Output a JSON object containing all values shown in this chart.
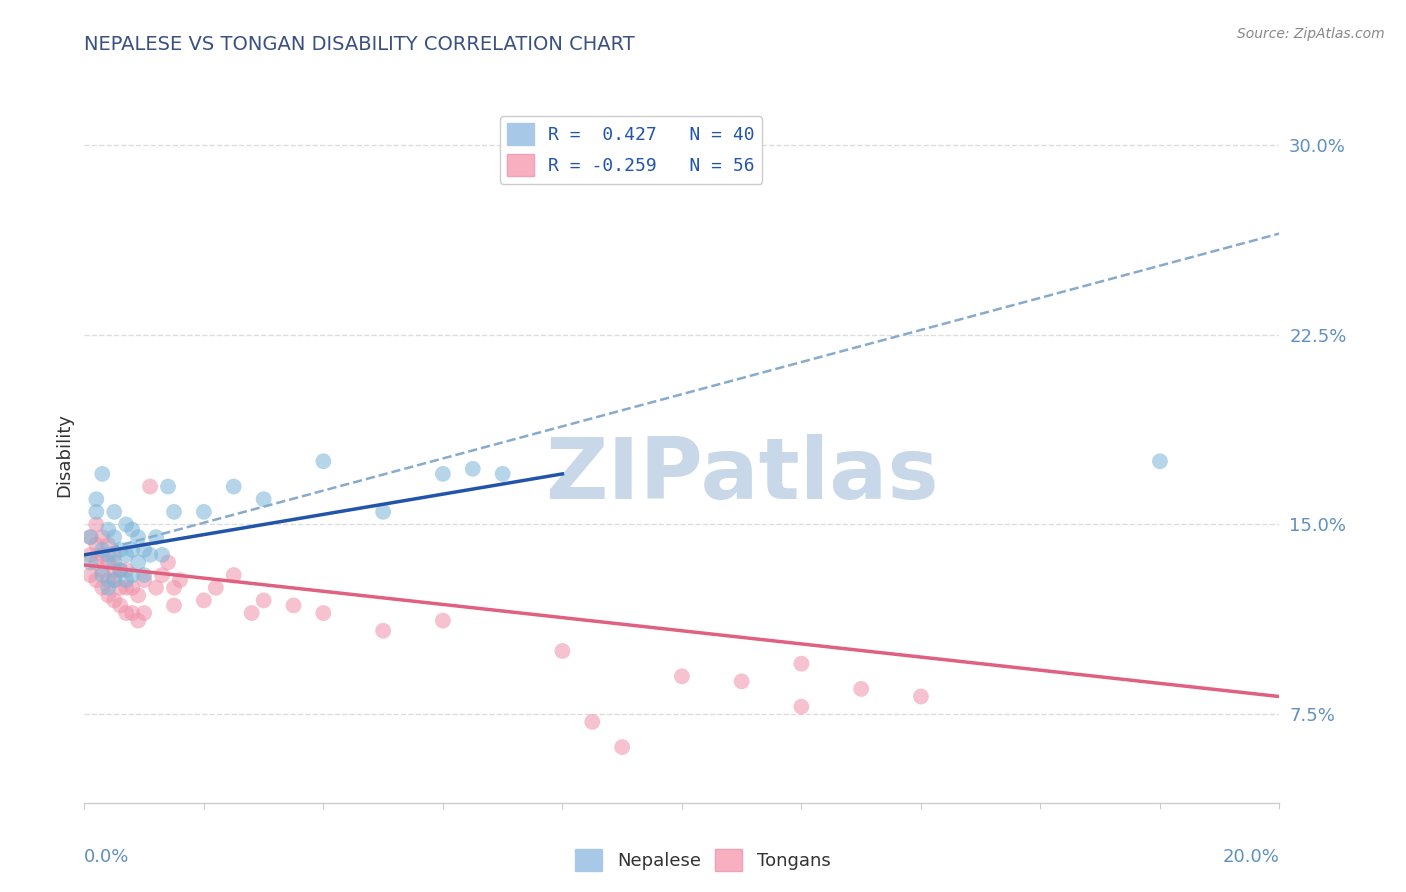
{
  "title": "NEPALESE VS TONGAN DISABILITY CORRELATION CHART",
  "source": "Source: ZipAtlas.com",
  "ylabel": "Disability",
  "xmin": 0.0,
  "xmax": 0.2,
  "ymin": 0.04,
  "ymax": 0.315,
  "yticks": [
    0.075,
    0.15,
    0.225,
    0.3
  ],
  "ytick_labels": [
    "7.5%",
    "15.0%",
    "22.5%",
    "30.0%"
  ],
  "legend_entries": [
    {
      "label": "R =  0.427   N = 40",
      "color": "#a8c8e8"
    },
    {
      "label": "R = -0.259   N = 56",
      "color": "#f8b0c0"
    }
  ],
  "nepalese_color": "#7ab4d8",
  "tongan_color": "#f090a8",
  "nepalese_line_color": "#2255aa",
  "tongan_line_color": "#e06080",
  "dashed_line_color": "#88aacc",
  "nepalese_scatter": {
    "x": [
      0.001,
      0.001,
      0.002,
      0.002,
      0.003,
      0.003,
      0.003,
      0.004,
      0.004,
      0.004,
      0.005,
      0.005,
      0.005,
      0.005,
      0.006,
      0.006,
      0.007,
      0.007,
      0.007,
      0.008,
      0.008,
      0.008,
      0.009,
      0.009,
      0.01,
      0.01,
      0.011,
      0.012,
      0.013,
      0.014,
      0.015,
      0.02,
      0.025,
      0.03,
      0.04,
      0.05,
      0.06,
      0.065,
      0.07,
      0.18
    ],
    "y": [
      0.135,
      0.145,
      0.155,
      0.16,
      0.13,
      0.14,
      0.17,
      0.125,
      0.138,
      0.148,
      0.128,
      0.135,
      0.145,
      0.155,
      0.132,
      0.14,
      0.128,
      0.138,
      0.15,
      0.13,
      0.14,
      0.148,
      0.135,
      0.145,
      0.13,
      0.14,
      0.138,
      0.145,
      0.138,
      0.165,
      0.155,
      0.155,
      0.165,
      0.16,
      0.175,
      0.155,
      0.17,
      0.172,
      0.17,
      0.175
    ]
  },
  "tongan_scatter": {
    "x": [
      0.001,
      0.001,
      0.001,
      0.002,
      0.002,
      0.002,
      0.002,
      0.003,
      0.003,
      0.003,
      0.003,
      0.004,
      0.004,
      0.004,
      0.004,
      0.005,
      0.005,
      0.005,
      0.005,
      0.006,
      0.006,
      0.006,
      0.007,
      0.007,
      0.007,
      0.008,
      0.008,
      0.009,
      0.009,
      0.01,
      0.01,
      0.011,
      0.012,
      0.013,
      0.014,
      0.015,
      0.015,
      0.016,
      0.02,
      0.022,
      0.025,
      0.028,
      0.03,
      0.035,
      0.04,
      0.05,
      0.06,
      0.08,
      0.1,
      0.12,
      0.13,
      0.14,
      0.11,
      0.12,
      0.085,
      0.09
    ],
    "y": [
      0.13,
      0.138,
      0.145,
      0.128,
      0.135,
      0.142,
      0.15,
      0.125,
      0.132,
      0.138,
      0.145,
      0.122,
      0.128,
      0.135,
      0.142,
      0.12,
      0.128,
      0.132,
      0.138,
      0.118,
      0.125,
      0.132,
      0.115,
      0.125,
      0.132,
      0.115,
      0.125,
      0.112,
      0.122,
      0.115,
      0.128,
      0.165,
      0.125,
      0.13,
      0.135,
      0.118,
      0.125,
      0.128,
      0.12,
      0.125,
      0.13,
      0.115,
      0.12,
      0.118,
      0.115,
      0.108,
      0.112,
      0.1,
      0.09,
      0.095,
      0.085,
      0.082,
      0.088,
      0.078,
      0.072,
      0.062
    ]
  },
  "nepalese_line": {
    "x0": 0.0,
    "x1": 0.08,
    "y0": 0.138,
    "y1": 0.17
  },
  "tongan_line": {
    "x0": 0.0,
    "x1": 0.2,
    "y0": 0.134,
    "y1": 0.082
  },
  "dashed_line": {
    "x0": 0.0,
    "x1": 0.2,
    "y0": 0.138,
    "y1": 0.265
  },
  "watermark_text": "ZIPatlas",
  "watermark_color": "#c8d8e8",
  "background_color": "#ffffff",
  "grid_color": "#dddddd",
  "title_color": "#3a5080",
  "axis_label_color": "#6090c0",
  "legend_text_color": "#2255aa",
  "source_color": "#888888"
}
